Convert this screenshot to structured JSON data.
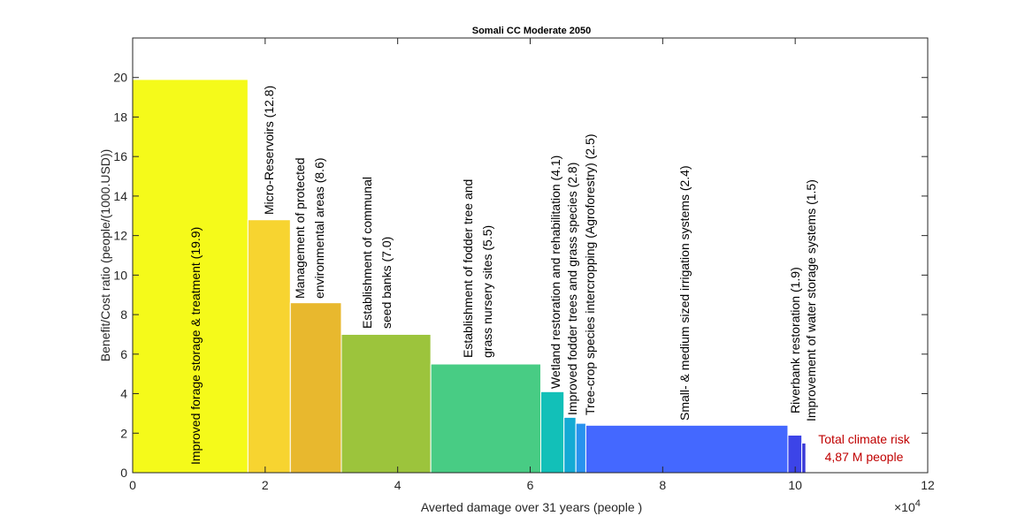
{
  "chart_data": {
    "type": "bar",
    "title": "Somali CC Moderate 2050",
    "xlabel": "Averted damage over 31 years (people )",
    "ylabel": "Benefit/Cost ratio (people/(1000.USD))",
    "x_multiplier": "×10",
    "x_multiplier_exp": "4",
    "xlim": [
      0,
      120000
    ],
    "ylim": [
      0,
      22
    ],
    "xticks": [
      0,
      2,
      4,
      6,
      8,
      10,
      12
    ],
    "yticks": [
      0,
      2,
      4,
      6,
      8,
      10,
      12,
      14,
      16,
      18,
      20
    ],
    "grid": false,
    "bars": [
      {
        "lines": [
          "Improved forage storage & treatment  (19.9)"
        ],
        "x0": 0,
        "x1": 17400,
        "value": 19.9,
        "color": "#f5fa1a"
      },
      {
        "lines": [
          "Micro-Reservoirs (12.8)"
        ],
        "x0": 17400,
        "x1": 23800,
        "value": 12.8,
        "color": "#f7d430"
      },
      {
        "lines": [
          "Management of protected",
          "environmental areas  (8.6)"
        ],
        "x0": 23800,
        "x1": 31500,
        "value": 8.6,
        "color": "#e8b82e"
      },
      {
        "lines": [
          "Establishment of communal",
          "seed banks  (7.0)"
        ],
        "x0": 31500,
        "x1": 45000,
        "value": 7.0,
        "color": "#9cc43c"
      },
      {
        "lines": [
          "Establishment of fodder tree and",
          "grass nursery sites  (5.5)"
        ],
        "x0": 45000,
        "x1": 61600,
        "value": 5.5,
        "color": "#48cc84"
      },
      {
        "lines": [
          "Wetland restoration and rehabilitation  (4.1)"
        ],
        "x0": 61600,
        "x1": 65100,
        "value": 4.1,
        "color": "#12c0b8"
      },
      {
        "lines": [
          "Improved fodder trees and grass species  (2.8)"
        ],
        "x0": 65100,
        "x1": 66900,
        "value": 2.8,
        "color": "#14aad4"
      },
      {
        "lines": [
          "Tree-crop species intercropping (Agroforestry)  (2.5)"
        ],
        "x0": 66900,
        "x1": 68400,
        "value": 2.5,
        "color": "#2892ee"
      },
      {
        "lines": [
          "Small- & medium sized irrigation systems  (2.4)"
        ],
        "x0": 68400,
        "x1": 98900,
        "value": 2.4,
        "color": "#4468ff"
      },
      {
        "lines": [
          "Riverbank restoration  (1.9)"
        ],
        "x0": 98900,
        "x1": 101000,
        "value": 1.9,
        "color": "#3c44e8"
      },
      {
        "lines": [
          "Improvement of water storage systems  (1.5)"
        ],
        "x0": 101000,
        "x1": 101600,
        "value": 1.5,
        "color": "#3838d8"
      }
    ],
    "annotation": {
      "lines": [
        "Total climate risk",
        "4,87 M people"
      ],
      "color": "#c00000"
    }
  }
}
